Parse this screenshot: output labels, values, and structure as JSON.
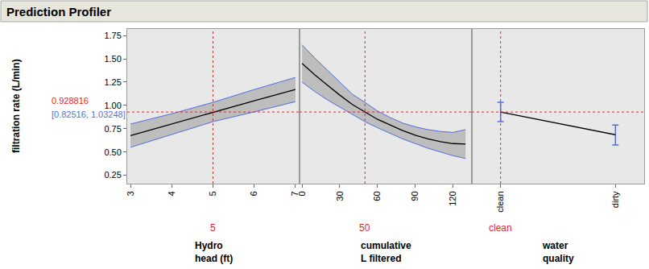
{
  "title": "Prediction Profiler",
  "response": {
    "label": "filtration rate (L/min)",
    "value": 0.928816,
    "value_label": "0.928816",
    "interval": [
      0.82516,
      1.03248
    ],
    "interval_label": "[0.82516, 1.03248]"
  },
  "chart_data": [
    {
      "type": "line",
      "xlabel": "Hydro\nhead (ft)",
      "ylabel": "filtration rate (L/min)",
      "color": "#000000",
      "x": [
        3,
        4,
        5,
        6,
        7
      ],
      "values": [
        0.675,
        0.8,
        0.928816,
        1.05,
        1.17
      ],
      "lower": [
        0.55,
        0.69,
        0.82516,
        0.93,
        1.04
      ],
      "upper": [
        0.8,
        0.91,
        1.03248,
        1.17,
        1.3
      ],
      "xlim": [
        2.92,
        7.1
      ],
      "xticks": [
        3,
        4,
        5,
        6,
        7
      ],
      "ylim": [
        0.16,
        1.82
      ],
      "yticks": [
        0.25,
        {
          "value": 0.5,
          "label": "0.50"
        },
        0.75,
        {
          "value": 1,
          "label": "1.00"
        },
        1.25,
        {
          "value": 1.5,
          "label": "1.50"
        },
        1.75
      ],
      "grid": false,
      "annotations": [
        {
          "x": 5,
          "text": "5"
        }
      ]
    },
    {
      "type": "line",
      "xlabel": "cumulative\nL filtered",
      "color": "#000000",
      "tick_labels": "x",
      "x": [
        0,
        10,
        20,
        30,
        40,
        50,
        60,
        70,
        80,
        90,
        100,
        110,
        120,
        130
      ],
      "values": [
        1.45,
        1.33,
        1.22,
        1.11,
        1.01,
        0.928816,
        0.85,
        0.79,
        0.73,
        0.68,
        0.64,
        0.61,
        0.59,
        0.585
      ],
      "lower": [
        1.25,
        1.15,
        1.06,
        0.98,
        0.9,
        0.82516,
        0.76,
        0.7,
        0.64,
        0.59,
        0.54,
        0.5,
        0.46,
        0.43
      ],
      "upper": [
        1.65,
        1.51,
        1.38,
        1.25,
        1.12,
        1.03248,
        0.94,
        0.87,
        0.81,
        0.77,
        0.74,
        0.72,
        0.71,
        0.74
      ],
      "xlim": [
        -2,
        135
      ],
      "xticks": [
        0,
        30,
        60,
        90,
        120
      ],
      "ylim": [
        0.16,
        1.82
      ],
      "grid": false,
      "annotations": [
        {
          "x": 50,
          "text": "50"
        }
      ]
    },
    {
      "type": "line",
      "xlabel": "water\nquality",
      "color": "#000000",
      "tick_labels": "x",
      "categories": [
        "clean",
        "dirty"
      ],
      "values": [
        0.928816,
        0.685
      ],
      "lower": [
        0.82516,
        0.575
      ],
      "upper": [
        1.03248,
        0.79
      ],
      "ylim": [
        0.16,
        1.82
      ],
      "grid": false,
      "annotations": [
        {
          "x": "clean",
          "text": "clean"
        }
      ]
    }
  ]
}
